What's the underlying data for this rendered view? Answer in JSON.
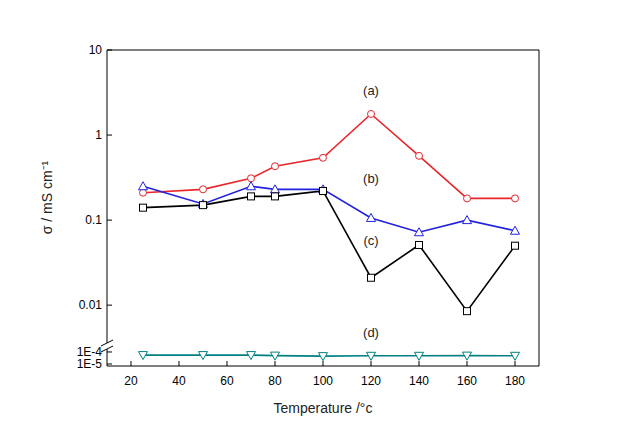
{
  "chart_data": [
    {
      "type": "line",
      "log": "y",
      "y_label": "σ / mS cm⁻¹",
      "tick_labels": "y",
      "x": [
        25,
        50,
        70,
        80,
        100,
        120,
        140,
        160,
        180
      ],
      "xlim": [
        10,
        190
      ],
      "ylim": [
        0.0034,
        10
      ],
      "yticks": [
        0.01,
        0.1,
        1,
        10
      ],
      "series": [
        {
          "name": "(a)",
          "color": "#e8262b",
          "marker": "circle",
          "values": [
            0.21,
            0.23,
            0.31,
            0.43,
            0.54,
            1.77,
            0.57,
            0.18,
            0.18
          ]
        },
        {
          "name": "(b)",
          "color": "#2222dd",
          "marker": "triangle",
          "values": [
            0.25,
            0.155,
            0.25,
            0.23,
            0.23,
            0.106,
            0.072,
            0.1,
            0.075
          ]
        },
        {
          "name": "(c)",
          "color": "#000000",
          "marker": "square",
          "values": [
            0.14,
            0.15,
            0.19,
            0.19,
            0.22,
            0.021,
            0.051,
            0.0085,
            0.05
          ]
        }
      ]
    },
    {
      "type": "line",
      "log": "y",
      "x_label": "Temperature /°c",
      "x": [
        25,
        50,
        70,
        80,
        100,
        120,
        140,
        160,
        180
      ],
      "xlim": [
        10,
        190
      ],
      "xticks": [
        20,
        40,
        60,
        80,
        100,
        120,
        140,
        160,
        180
      ],
      "ylim": [
        6.8e-06,
        0.00026
      ],
      "yticks": [
        {
          "value": 0.0001,
          "label": "1E-4"
        },
        {
          "value": 1e-05,
          "label": "1E-5"
        }
      ],
      "series": [
        {
          "name": "(d)",
          "color": "#008080",
          "marker": "triangle-down",
          "values": [
            5.5e-05,
            5.5e-05,
            5.5e-05,
            5e-05,
            4.5e-05,
            4.8e-05,
            4.8e-05,
            5e-05,
            4.8e-05
          ]
        }
      ]
    }
  ]
}
